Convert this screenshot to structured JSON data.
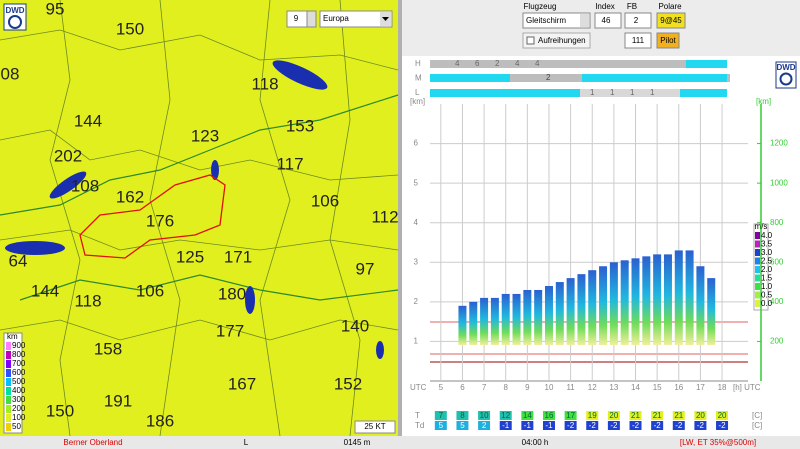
{
  "map": {
    "logo": "DWD",
    "zoom": "9",
    "region": "Europa",
    "labels": [
      "95",
      "150",
      "08",
      "118",
      "144",
      "123",
      "153",
      "202",
      "117",
      "108",
      "162",
      "176",
      "106",
      "112",
      "64",
      "125",
      "171",
      "97",
      "144",
      "118",
      "106",
      "180",
      "140",
      "158",
      "177",
      "167",
      "152",
      "150",
      "191",
      "186"
    ],
    "legend_unit": "km",
    "legend": [
      "900",
      "800",
      "700",
      "600",
      "500",
      "400",
      "300",
      "200",
      "100",
      "50"
    ],
    "scale": "25 KT"
  },
  "toolbar": {
    "aircraft_label": "Flugzeug",
    "aircraft": "Gleitschirm",
    "index_label": "Index",
    "index": "46",
    "fb_label": "FB",
    "fb": "2",
    "polar_label": "Polare",
    "polar": "9@45",
    "lineup": "Aufreihungen",
    "altitude": "111",
    "pilot": "Pilot"
  },
  "chart": {
    "logo": "DWD",
    "layers": [
      "H",
      "M",
      "L"
    ],
    "h_row": [
      "4",
      "6",
      "2",
      "4",
      "4"
    ],
    "m_row": [
      "2"
    ],
    "l_row": [
      "1",
      "1",
      "1",
      "1"
    ],
    "y_unit": "[km]",
    "yticks": [
      1,
      2,
      3,
      4,
      5,
      6
    ],
    "ylim": [
      0,
      7
    ],
    "y2_unit": "[km]",
    "y2ticks": [
      200,
      400,
      600,
      800,
      1000,
      1200
    ],
    "y2lim": [
      0,
      1400
    ],
    "x_label": "UTC",
    "hours": [
      5,
      6,
      7,
      8,
      9,
      10,
      11,
      12,
      13,
      14,
      15,
      16,
      17,
      18
    ],
    "xlim": [
      4.5,
      19.2
    ],
    "x_unit": "[h] UTC",
    "bar_hours": [
      6,
      6.5,
      7,
      7.5,
      8,
      8.5,
      9,
      9.5,
      10,
      10.5,
      11,
      11.5,
      12,
      12.5,
      13,
      13.5,
      14,
      14.5,
      15,
      15.5,
      16,
      16.5,
      17,
      17.5
    ],
    "bar_tops": [
      1.9,
      2.0,
      2.1,
      2.1,
      2.2,
      2.2,
      2.3,
      2.3,
      2.4,
      2.5,
      2.6,
      2.7,
      2.8,
      2.9,
      3.0,
      3.05,
      3.1,
      3.15,
      3.2,
      3.2,
      3.3,
      3.3,
      2.9,
      2.6
    ],
    "lift_unit": "m/s",
    "lift_scale": [
      "4.0",
      "3.5",
      "3.0",
      "2.5",
      "2.0",
      "1.5",
      "1.0",
      "0.5",
      "0.0"
    ],
    "t_label": "T",
    "t": [
      "7",
      "8",
      "10",
      "12",
      "14",
      "16",
      "17",
      "19",
      "20",
      "21",
      "21",
      "21",
      "20",
      "20"
    ],
    "td_label": "Td",
    "td": [
      "5",
      "5",
      "2",
      "-1",
      "-1",
      "-1",
      "-2",
      "-2",
      "-2",
      "-2",
      "-2",
      "-2",
      "-2",
      "-2"
    ],
    "temp_unit": "[C]"
  },
  "status": {
    "region": "Berner Oberland",
    "layer": "L",
    "height": "0145 m",
    "time": "04:00 h",
    "info": "[LW, ET 35%@500m]"
  }
}
